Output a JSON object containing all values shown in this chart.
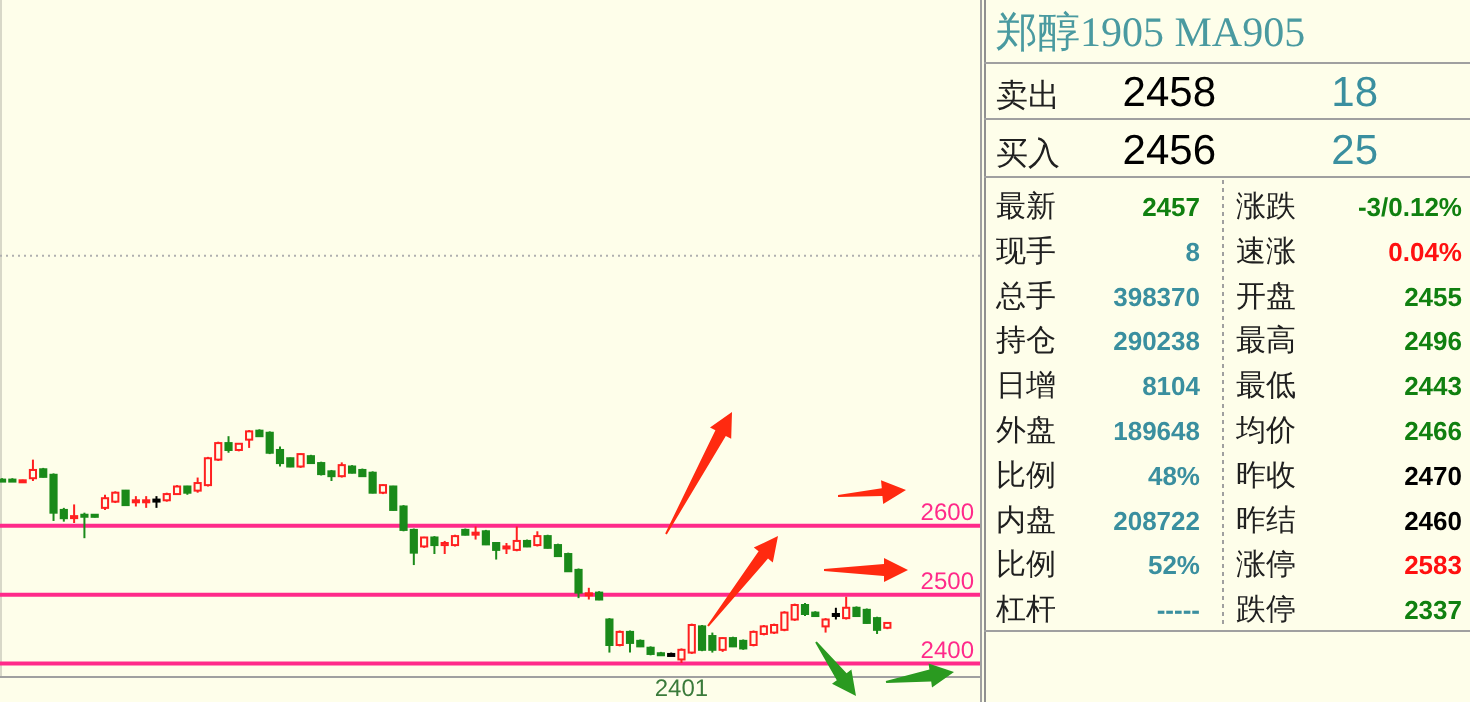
{
  "chart_data": [
    {
      "type": "candlestick",
      "categories": [
        null,
        null,
        null,
        null,
        null,
        null,
        null,
        null,
        null,
        null,
        null,
        null,
        null,
        null,
        null,
        null,
        null,
        null,
        null,
        null,
        null,
        null,
        null,
        null,
        null,
        null,
        null,
        null,
        null,
        null,
        null,
        null,
        null,
        null,
        null,
        null,
        null,
        null,
        null,
        null,
        null,
        null,
        null,
        null,
        null,
        null,
        null,
        null,
        null,
        null,
        null,
        null,
        null,
        null,
        null,
        null,
        null,
        null,
        null,
        null,
        null,
        null,
        null,
        null,
        null,
        null,
        null,
        null,
        null,
        null,
        null,
        null,
        null,
        null,
        null,
        null,
        null,
        null,
        null,
        null,
        null,
        null,
        null,
        null,
        null,
        null,
        null
      ],
      "ohlc": [
        [
          2667,
          2669,
          2664,
          2665
        ],
        [
          2667,
          2669,
          2664,
          2665
        ],
        [
          2666,
          2667,
          2665,
          2666
        ],
        [
          2669,
          2696,
          2665,
          2681
        ],
        [
          2682,
          2684,
          2670,
          2671
        ],
        [
          2674,
          2676,
          2607,
          2619
        ],
        [
          2623,
          2626,
          2606,
          2611
        ],
        [
          2613,
          2631,
          2604,
          2614
        ],
        [
          2616,
          2619,
          2582,
          2615
        ],
        [
          2616,
          2617,
          2612,
          2613
        ],
        [
          2626,
          2645,
          2623,
          2640
        ],
        [
          2635,
          2650,
          2633,
          2648
        ],
        [
          2651,
          2652,
          2630,
          2630
        ],
        [
          2635,
          2643,
          2628,
          2637
        ],
        [
          2635,
          2643,
          2626,
          2637
        ],
        [
          2638,
          2643,
          2626,
          2638
        ],
        [
          2637,
          2648,
          2635,
          2646
        ],
        [
          2646,
          2659,
          2645,
          2657
        ],
        [
          2657,
          2658,
          2645,
          2648
        ],
        [
          2651,
          2670,
          2648,
          2662
        ],
        [
          2659,
          2700,
          2657,
          2698
        ],
        [
          2696,
          2722,
          2694,
          2720
        ],
        [
          2720,
          2730,
          2706,
          2710
        ],
        [
          2710,
          2719,
          2708,
          2719
        ],
        [
          2725,
          2739,
          2713,
          2737
        ],
        [
          2738,
          2740,
          2729,
          2730
        ],
        [
          2735,
          2737,
          2704,
          2706
        ],
        [
          2710,
          2715,
          2686,
          2691
        ],
        [
          2698,
          2699,
          2685,
          2686
        ],
        [
          2686,
          2705,
          2684,
          2704
        ],
        [
          2701,
          2703,
          2690,
          2691
        ],
        [
          2691,
          2693,
          2673,
          2675
        ],
        [
          2679,
          2681,
          2665,
          2672
        ],
        [
          2672,
          2692,
          2670,
          2688
        ],
        [
          2686,
          2688,
          2676,
          2677
        ],
        [
          2681,
          2683,
          2671,
          2672
        ],
        [
          2677,
          2679,
          2647,
          2648
        ],
        [
          2648,
          2660,
          2646,
          2659
        ],
        [
          2657,
          2658,
          2622,
          2623
        ],
        [
          2628,
          2630,
          2592,
          2594
        ],
        [
          2594,
          2596,
          2543,
          2561
        ],
        [
          2570,
          2584,
          2568,
          2583
        ],
        [
          2583,
          2585,
          2559,
          2572
        ],
        [
          2572,
          2578,
          2559,
          2575
        ],
        [
          2572,
          2587,
          2570,
          2585
        ],
        [
          2594,
          2596,
          2586,
          2587
        ],
        [
          2589,
          2599,
          2580,
          2590
        ],
        [
          2592,
          2594,
          2572,
          2573
        ],
        [
          2575,
          2576,
          2551,
          2565
        ],
        [
          2568,
          2575,
          2559,
          2570
        ],
        [
          2565,
          2599,
          2563,
          2578
        ],
        [
          2578,
          2580,
          2569,
          2570
        ],
        [
          2572,
          2592,
          2570,
          2585
        ],
        [
          2585,
          2587,
          2567,
          2568
        ],
        [
          2572,
          2574,
          2555,
          2556
        ],
        [
          2559,
          2561,
          2533,
          2534
        ],
        [
          2536,
          2538,
          2495,
          2503
        ],
        [
          2501,
          2510,
          2493,
          2502
        ],
        [
          2503,
          2505,
          2492,
          2493
        ],
        [
          2464,
          2466,
          2416,
          2427
        ],
        [
          2427,
          2448,
          2425,
          2446
        ],
        [
          2446,
          2448,
          2416,
          2430
        ],
        [
          2433,
          2435,
          2424,
          2425
        ],
        [
          2423,
          2425,
          2412,
          2414
        ],
        [
          2415,
          2417,
          2412,
          2414
        ],
        [
          2414,
          2416,
          2412,
          2414
        ],
        [
          2406,
          2422,
          2401,
          2420
        ],
        [
          2416,
          2458,
          2414,
          2456
        ],
        [
          2454,
          2456,
          2418,
          2420
        ],
        [
          2440,
          2445,
          2416,
          2420
        ],
        [
          2420,
          2438,
          2417,
          2437
        ],
        [
          2437,
          2439,
          2424,
          2425
        ],
        [
          2433,
          2435,
          2420,
          2422
        ],
        [
          2427,
          2448,
          2425,
          2446
        ],
        [
          2443,
          2456,
          2441,
          2454
        ],
        [
          2445,
          2458,
          2443,
          2456
        ],
        [
          2449,
          2476,
          2447,
          2474
        ],
        [
          2464,
          2487,
          2462,
          2485
        ],
        [
          2485,
          2488,
          2469,
          2472
        ],
        [
          2474,
          2476,
          2468,
          2469
        ],
        [
          2454,
          2466,
          2445,
          2464
        ],
        [
          2472,
          2481,
          2464,
          2472
        ],
        [
          2466,
          2497,
          2464,
          2481
        ],
        [
          2481,
          2483,
          2468,
          2469
        ],
        [
          2478,
          2480,
          2458,
          2459
        ],
        [
          2466,
          2468,
          2443,
          2449
        ],
        [
          2452,
          2459,
          2450,
          2459
        ]
      ],
      "colors": [
        "#1a8a1a",
        "#1a8a1a",
        "#ff2020",
        "#ff2020",
        "#1a8a1a",
        "#1a8a1a",
        "#1a8a1a",
        "#ff2020",
        "#1a8a1a",
        "#1a8a1a",
        "#ff2020",
        "#ff2020",
        "#1a8a1a",
        "#ff2020",
        "#ff2020",
        "#000000",
        "#ff2020",
        "#ff2020",
        "#1a8a1a",
        "#ff2020",
        "#ff2020",
        "#ff2020",
        "#1a8a1a",
        "#ff2020",
        "#ff2020",
        "#1a8a1a",
        "#1a8a1a",
        "#1a8a1a",
        "#1a8a1a",
        "#ff2020",
        "#1a8a1a",
        "#1a8a1a",
        "#1a8a1a",
        "#ff2020",
        "#1a8a1a",
        "#1a8a1a",
        "#1a8a1a",
        "#ff2020",
        "#1a8a1a",
        "#1a8a1a",
        "#1a8a1a",
        "#ff2020",
        "#1a8a1a",
        "#ff2020",
        "#ff2020",
        "#1a8a1a",
        "#ff2020",
        "#1a8a1a",
        "#1a8a1a",
        "#ff2020",
        "#ff2020",
        "#1a8a1a",
        "#ff2020",
        "#1a8a1a",
        "#1a8a1a",
        "#1a8a1a",
        "#1a8a1a",
        "#ff2020",
        "#1a8a1a",
        "#1a8a1a",
        "#ff2020",
        "#1a8a1a",
        "#1a8a1a",
        "#1a8a1a",
        "#1a8a1a",
        "#000000",
        "#ff2020",
        "#ff2020",
        "#1a8a1a",
        "#1a8a1a",
        "#ff2020",
        "#1a8a1a",
        "#1a8a1a",
        "#ff2020",
        "#ff2020",
        "#ff2020",
        "#ff2020",
        "#ff2020",
        "#1a8a1a",
        "#1a8a1a",
        "#ff2020",
        "#000000",
        "#ff2020",
        "#1a8a1a",
        "#1a8a1a",
        "#1a8a1a",
        "#ff2020"
      ],
      "ylim": [
        2382,
        3363
      ],
      "ref_lines": [
        {
          "axis": "y",
          "value": 2600,
          "label": "2600",
          "color": "#ff2a8a"
        },
        {
          "axis": "y",
          "value": 2500,
          "label": "2500",
          "color": "#ff2a8a"
        },
        {
          "axis": "y",
          "value": 2400,
          "label": "2400",
          "color": "#ff2a8a"
        },
        {
          "axis": "y",
          "value": 2992,
          "color": "#b0b0b0",
          "line_style": "dotted"
        }
      ],
      "annotations": [
        {
          "text": "2401",
          "y": 2401
        }
      ]
    },
    {
      "type": "other",
      "title": "郑醇1905 MA905",
      "annotations": [
        "卖出",
        "2458",
        "18",
        "买入",
        "2456",
        "25",
        "最新",
        "2457",
        "涨跌",
        "-3/0.12%",
        "现手",
        "8",
        "速涨",
        "0.04%",
        "总手",
        "398370",
        "开盘",
        "2455",
        "持仓",
        "290238",
        "最高",
        "2496",
        "日增",
        "8104",
        "最低",
        "2443",
        "外盘",
        "189648",
        "均价",
        "2466",
        "比例",
        "48%",
        "昨收",
        "2470",
        "内盘",
        "208722",
        "昨结",
        "2460",
        "比例",
        "52%",
        "涨停",
        "2583",
        "杠杆",
        "-----",
        "跌停",
        "2337"
      ],
      "colors": [
        "#202020",
        "#000000",
        "#3a8f9f",
        "#202020",
        "#000000",
        "#3a8f9f",
        "#202020",
        "#108010",
        "#202020",
        "#108010",
        "#202020",
        "#3a8f9f",
        "#202020",
        "#ff1010",
        "#202020",
        "#3a8f9f",
        "#202020",
        "#108010",
        "#202020",
        "#3a8f9f",
        "#202020",
        "#108010",
        "#202020",
        "#3a8f9f",
        "#202020",
        "#108010",
        "#202020",
        "#3a8f9f",
        "#202020",
        "#108010",
        "#202020",
        "#3a8f9f",
        "#202020",
        "#000000",
        "#202020",
        "#3a8f9f",
        "#202020",
        "#000000",
        "#202020",
        "#3a8f9f",
        "#202020",
        "#ff1010",
        "#202020",
        "#3a8f9f",
        "#202020",
        "#108010"
      ]
    }
  ]
}
